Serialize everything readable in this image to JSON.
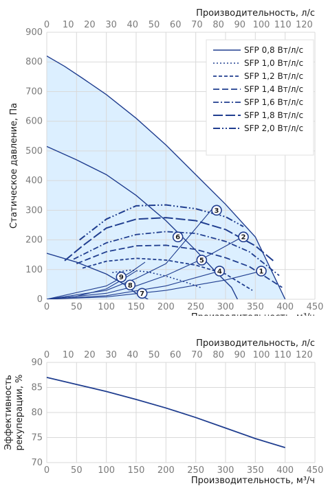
{
  "chart_data": [
    {
      "type": "line",
      "x_top_label": "Производительность, л/с",
      "x_top_ticks": [
        "0",
        "10",
        "20",
        "30",
        "40",
        "50",
        "60",
        "70",
        "80",
        "90",
        "100",
        "110",
        "120"
      ],
      "x_top_lim": [
        0,
        125
      ],
      "xlabel": "Производительность, м³/ч",
      "x_ticks": [
        "0",
        "50",
        "100",
        "150",
        "200",
        "250",
        "300",
        "350",
        "400",
        "450"
      ],
      "xlim": [
        0,
        450
      ],
      "ylabel": "Статическое давление, Па",
      "y_ticks": [
        "0",
        "100",
        "200",
        "300",
        "400",
        "500",
        "600",
        "700",
        "800",
        "900"
      ],
      "ylim": [
        0,
        900
      ],
      "grid": true,
      "legend_position": "top-right",
      "colors": {
        "line": "#1f3d8f",
        "fill": "#dcefff",
        "grid": "#d9d9d9"
      },
      "fan_curves": [
        {
          "x": [
            0,
            30,
            60,
            100,
            150,
            200,
            250,
            300,
            350,
            400
          ],
          "y": [
            820,
            785,
            745,
            690,
            610,
            520,
            420,
            320,
            210,
            0
          ]
        },
        {
          "x": [
            0,
            50,
            100,
            150,
            200,
            250,
            280,
            310,
            320
          ],
          "y": [
            515,
            470,
            420,
            350,
            265,
            165,
            100,
            40,
            0
          ]
        },
        {
          "x": [
            0,
            50,
            100,
            130,
            150,
            170
          ],
          "y": [
            155,
            125,
            85,
            50,
            20,
            0
          ]
        }
      ],
      "system_curves": [
        {
          "x": [
            0,
            100,
            200,
            300,
            360
          ],
          "y": [
            0,
            8,
            30,
            65,
            95
          ]
        },
        {
          "x": [
            0,
            100,
            200,
            290
          ],
          "y": [
            0,
            12,
            45,
            95
          ]
        },
        {
          "x": [
            0,
            100,
            150,
            200,
            260,
            330
          ],
          "y": [
            0,
            20,
            45,
            80,
            135,
            212
          ]
        },
        {
          "x": [
            0,
            100,
            150,
            200,
            280
          ],
          "y": [
            0,
            30,
            70,
            120,
            310
          ]
        },
        {
          "x": [
            0,
            50,
            100,
            130,
            150
          ],
          "y": [
            0,
            10,
            35,
            70,
            95
          ]
        },
        {
          "x": [
            0,
            100,
            140,
            165
          ],
          "y": [
            0,
            45,
            90,
            125
          ]
        }
      ],
      "sfp_curves": [
        {
          "name": "SFP 0,8 Вт/л/с",
          "x": [],
          "y": []
        },
        {
          "name": "SFP 1,0 Вт/л/с",
          "x": [
            110,
            140,
            170,
            200,
            230,
            260
          ],
          "y": [
            90,
            98,
            92,
            78,
            60,
            38
          ]
        },
        {
          "name": "SFP 1,2 Вт/л/с",
          "x": [
            60,
            100,
            150,
            200,
            250,
            300,
            345
          ],
          "y": [
            105,
            128,
            138,
            132,
            115,
            85,
            30
          ]
        },
        {
          "name": "SFP 1,4 Вт/л/с",
          "x": [
            50,
            100,
            150,
            200,
            250,
            300,
            340,
            395
          ],
          "y": [
            120,
            160,
            180,
            182,
            168,
            140,
            110,
            40
          ]
        },
        {
          "name": "SFP 1,6 Вт/л/с",
          "x": [
            45,
            100,
            150,
            200,
            250,
            300,
            340,
            390
          ],
          "y": [
            135,
            190,
            218,
            228,
            222,
            195,
            160,
            80
          ]
        },
        {
          "name": "SFP 1,8 Вт/л/с",
          "x": [
            30,
            60,
            100,
            150,
            200,
            250,
            300,
            350,
            380
          ],
          "y": [
            130,
            180,
            240,
            270,
            275,
            265,
            235,
            180,
            130
          ]
        },
        {
          "name": "SFP 2,0 Вт/л/с",
          "x": [
            55,
            100,
            150,
            200,
            250,
            300,
            330
          ],
          "y": [
            200,
            270,
            315,
            318,
            305,
            278,
            245
          ]
        }
      ],
      "markers": [
        {
          "label": "1",
          "x": 360,
          "y": 95
        },
        {
          "label": "2",
          "x": 330,
          "y": 210
        },
        {
          "label": "3",
          "x": 285,
          "y": 300
        },
        {
          "label": "4",
          "x": 290,
          "y": 95
        },
        {
          "label": "5",
          "x": 260,
          "y": 132
        },
        {
          "label": "6",
          "x": 220,
          "y": 210
        },
        {
          "label": "7",
          "x": 160,
          "y": 20
        },
        {
          "label": "8",
          "x": 140,
          "y": 48
        },
        {
          "label": "9",
          "x": 125,
          "y": 75
        }
      ]
    },
    {
      "type": "line",
      "x_top_label": "Производительность, л/с",
      "x_top_ticks": [
        "0",
        "10",
        "20",
        "30",
        "40",
        "50",
        "60",
        "70",
        "80",
        "90",
        "100",
        "110",
        "120"
      ],
      "x_top_lim": [
        0,
        125
      ],
      "xlabel": "Производительность, м³/ч",
      "x_ticks": [
        "0",
        "50",
        "100",
        "150",
        "200",
        "250",
        "300",
        "350",
        "400",
        "450"
      ],
      "xlim": [
        0,
        450
      ],
      "ylabel_line1": "Эффективность",
      "ylabel_line2": "рекуперации, %",
      "y_ticks": [
        "70",
        "75",
        "80",
        "85",
        "90"
      ],
      "ylim": [
        70,
        90
      ],
      "grid": true,
      "series": [
        {
          "x": [
            0,
            50,
            100,
            150,
            200,
            250,
            300,
            350,
            400
          ],
          "y": [
            87,
            85.6,
            84.2,
            82.6,
            80.9,
            79.0,
            76.9,
            74.8,
            73.0
          ]
        }
      ]
    }
  ]
}
